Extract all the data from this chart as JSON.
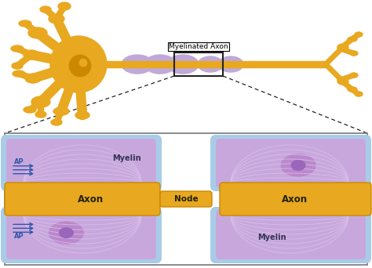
{
  "bg_color": "#ffffff",
  "neuron_color": "#E8A820",
  "neuron_dark": "#CC8800",
  "myelin_bump_color": "#C0A8D8",
  "box_edge": "#222222",
  "title": "Myelinated Axon",
  "label_axon": "Axon",
  "label_node": "Node",
  "label_myelin_top": "Myelin",
  "label_myelin_bot": "Myelin",
  "label_ap_top": "AP",
  "label_ap_bot": "AP",
  "text_color": "#333355",
  "dashed_line_color": "#222222",
  "panel_bg": "#ffffff",
  "panel_edge": "#888888",
  "lb_c": "#A8CCE8",
  "mf_c": "#C8A8DC",
  "ml_c": "#DDD0EE",
  "ax_col": "#E8A820",
  "ax_edge": "#CC8800",
  "ap_col": "#3355AA",
  "nucleus_fill": "#BB88CC",
  "nucleus_dark": "#9966BB",
  "line_color": "#D8C0EC"
}
